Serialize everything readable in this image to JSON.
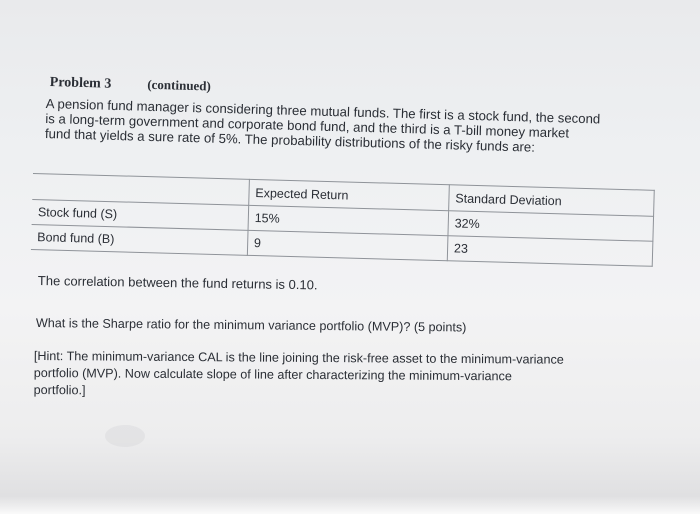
{
  "problem": {
    "title": "Problem 3",
    "subtitle": "(continued)"
  },
  "intro_lines": [
    "A pension fund manager is considering three mutual funds. The first is a stock fund, the second",
    "is a long-term government and corporate bond fund, and the third is a T-bill money market",
    "fund that yields a sure rate of 5%. The probability distributions of the risky funds are:"
  ],
  "table": {
    "headers": [
      "",
      "Expected Return",
      "Standard Deviation"
    ],
    "rows": [
      {
        "fund": "Stock fund (S)",
        "expected_return": "15%",
        "std_dev": "32%"
      },
      {
        "fund": "Bond fund (B)",
        "expected_return": "9",
        "std_dev": "23"
      }
    ]
  },
  "correlation": "The correlation between the fund returns is 0.10.",
  "question": "What is the Sharpe ratio for the minimum variance portfolio (MVP)? (5 points)",
  "hint_lines": [
    "[Hint: The minimum-variance CAL is the line joining the risk-free asset to the minimum-variance",
    "portfolio (MVP). Now calculate slope of line after characterizing the minimum-variance",
    "portfolio.]"
  ]
}
